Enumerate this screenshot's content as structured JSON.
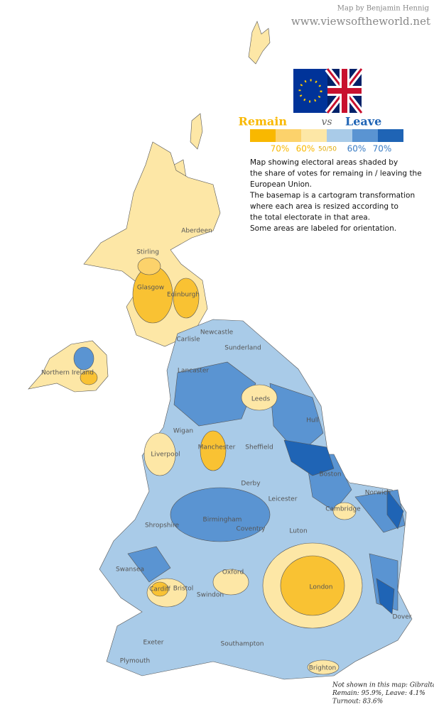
{
  "credit": {
    "line1": "Map by Benjamin Hennig",
    "line2": "www.viewsoftheworld.net"
  },
  "legend": {
    "remain": "Remain",
    "vs": "vs",
    "leave": "Leave",
    "colors": [
      "#f9b800",
      "#fcd26b",
      "#fde7a6",
      "#a9cbe8",
      "#5a94d2",
      "#1f64b5"
    ],
    "labels": [
      "70%",
      "60%",
      "50/50",
      "60%",
      "70%"
    ]
  },
  "description": [
    "Map showing electoral areas shaded by",
    "the share of votes for remaing in / leaving the",
    "European Union.",
    "The basemap is a cartogram transformation",
    "where each area is resized according to",
    "the total electorate in that area.",
    "Some areas are labeled for orientation."
  ],
  "places": [
    "Aberdeen",
    "Stirling",
    "Glasgow",
    "Edinburgh",
    "Newcastle",
    "Sunderland",
    "Carlisle",
    "Northern Ireland",
    "Lancaster",
    "Leeds",
    "Hull",
    "Wigan",
    "Manchester",
    "Sheffield",
    "Liverpool",
    "Boston",
    "Norwich",
    "Derby",
    "Leicester",
    "Cambridge",
    "Birmingham",
    "Coventry",
    "Shropshire",
    "Luton",
    "Swansea",
    "Oxford",
    "Cardiff",
    "Bristol",
    "London",
    "Swindon",
    "Dover",
    "Exeter",
    "Southampton",
    "Plymouth",
    "Brighton"
  ],
  "footnote": [
    "Not shown in this map: Gibraltar",
    "Remain: 95.9%, Leave: 4.1%",
    "Turnout: 83.6%"
  ]
}
